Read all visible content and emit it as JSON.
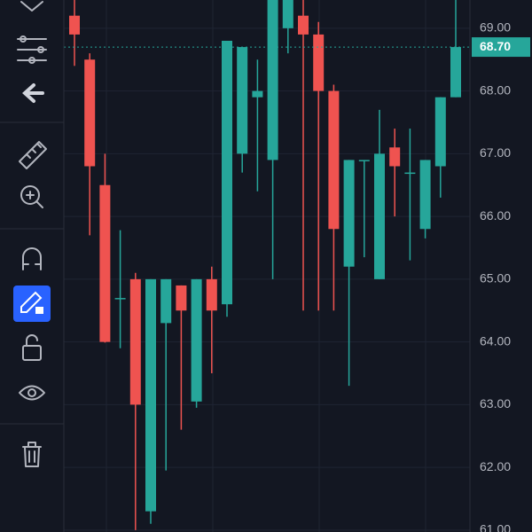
{
  "chart_data": {
    "type": "candlestick",
    "open": [
      69.2,
      68.5,
      66.5,
      64.7,
      65.0,
      61.3,
      64.3,
      64.9,
      63.05,
      65.0,
      64.6,
      67.0,
      67.9,
      66.9,
      69.0,
      69.2,
      68.9,
      68.0,
      65.2,
      66.9,
      65.0,
      67.1,
      66.7,
      65.8,
      66.8,
      67.9
    ],
    "high": [
      69.45,
      68.6,
      67.0,
      65.78,
      65.1,
      65.0,
      65.0,
      64.9,
      65.0,
      65.2,
      68.8,
      68.7,
      68.5,
      69.45,
      69.45,
      69.45,
      69.1,
      68.1,
      66.9,
      66.9,
      67.7,
      67.4,
      67.4,
      66.9,
      67.9,
      69.45
    ],
    "low": [
      68.4,
      65.7,
      63.99,
      63.9,
      61.0,
      61.1,
      61.95,
      62.6,
      62.95,
      63.5,
      64.4,
      66.7,
      66.4,
      65.0,
      68.6,
      64.5,
      64.5,
      64.5,
      63.3,
      65.35,
      65.0,
      66.0,
      65.3,
      65.65,
      66.3,
      67.9
    ],
    "close": [
      68.9,
      66.8,
      64.0,
      64.7,
      63.0,
      65.0,
      65.0,
      64.5,
      65.0,
      64.5,
      68.8,
      68.7,
      68.0,
      69.45,
      69.45,
      68.9,
      68.0,
      65.8,
      66.9,
      66.9,
      67.0,
      66.8,
      66.7,
      66.9,
      67.9,
      68.7
    ],
    "up_color": "#26a69a",
    "down_color": "#ef5350",
    "ylim": [
      60.97,
      69.45
    ],
    "yticks": [
      {
        "value": 61,
        "label": "61.00"
      },
      {
        "value": 62,
        "label": "62.00"
      },
      {
        "value": 63,
        "label": "63.00"
      },
      {
        "value": 64,
        "label": "64.00"
      },
      {
        "value": 65,
        "label": "65.00"
      },
      {
        "value": 66,
        "label": "66.00"
      },
      {
        "value": 67,
        "label": "67.00"
      },
      {
        "value": 68,
        "label": "68.00"
      },
      {
        "value": 69,
        "label": "69.00"
      }
    ],
    "last_price": {
      "value": 68.7,
      "label": "68.70"
    },
    "grid": true
  }
}
